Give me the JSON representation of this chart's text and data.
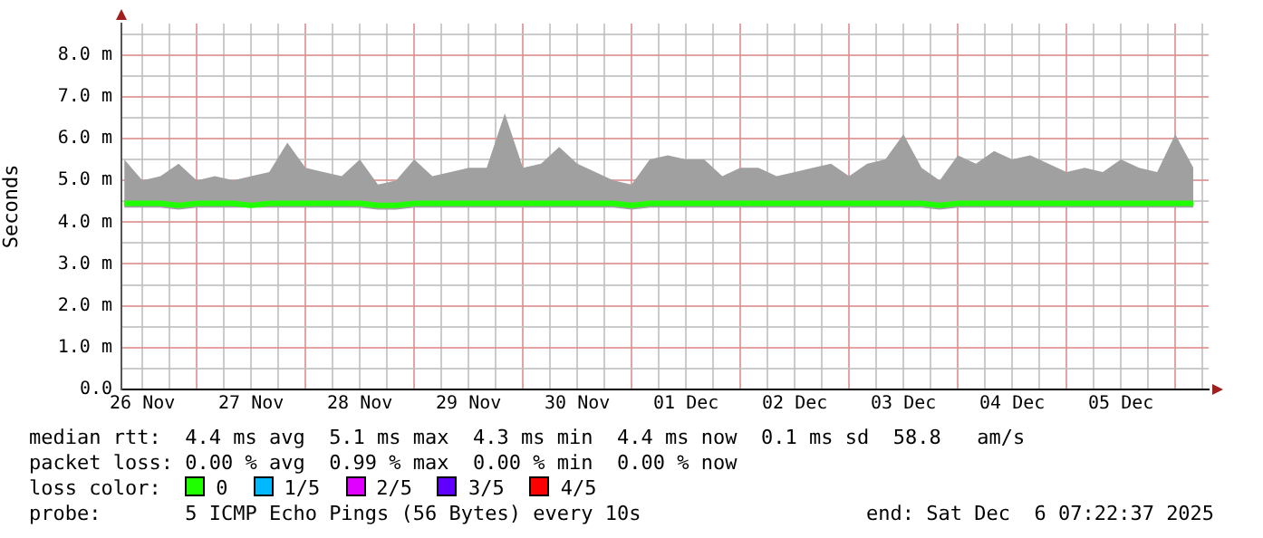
{
  "chart_data": {
    "type": "line",
    "ylabel": "Seconds",
    "legend_title": "loss color:",
    "legend": "bottom",
    "grid": true,
    "marker": "none",
    "line_style": "solid",
    "xlim": [
      "2025-11-26T07:22",
      "2025-12-06T07:22"
    ],
    "xticks": [
      {
        "value": "2025-11-26T12:00",
        "label": "26 Nov"
      },
      {
        "value": "2025-11-26T18:00",
        "label": null
      },
      {
        "value": "2025-11-27T00:00",
        "label": null
      },
      {
        "value": "2025-11-27T06:00",
        "label": null
      },
      {
        "value": "2025-11-27T12:00",
        "label": "27 Nov"
      },
      {
        "value": "2025-11-27T18:00",
        "label": null
      },
      {
        "value": "2025-11-28T00:00",
        "label": null
      },
      {
        "value": "2025-11-28T06:00",
        "label": null
      },
      {
        "value": "2025-11-28T12:00",
        "label": "28 Nov"
      },
      {
        "value": "2025-11-28T18:00",
        "label": null
      },
      {
        "value": "2025-11-29T00:00",
        "label": null
      },
      {
        "value": "2025-11-29T06:00",
        "label": null
      },
      {
        "value": "2025-11-29T12:00",
        "label": "29 Nov"
      },
      {
        "value": "2025-11-29T18:00",
        "label": null
      },
      {
        "value": "2025-11-30T00:00",
        "label": null
      },
      {
        "value": "2025-11-30T06:00",
        "label": null
      },
      {
        "value": "2025-11-30T12:00",
        "label": "30 Nov"
      },
      {
        "value": "2025-11-30T18:00",
        "label": null
      },
      {
        "value": "2025-12-01T00:00",
        "label": null
      },
      {
        "value": "2025-12-01T06:00",
        "label": null
      },
      {
        "value": "2025-12-01T12:00",
        "label": "01 Dec"
      },
      {
        "value": "2025-12-01T18:00",
        "label": null
      },
      {
        "value": "2025-12-02T00:00",
        "label": null
      },
      {
        "value": "2025-12-02T06:00",
        "label": null
      },
      {
        "value": "2025-12-02T12:00",
        "label": "02 Dec"
      },
      {
        "value": "2025-12-02T18:00",
        "label": null
      },
      {
        "value": "2025-12-03T00:00",
        "label": null
      },
      {
        "value": "2025-12-03T06:00",
        "label": null
      },
      {
        "value": "2025-12-03T12:00",
        "label": "03 Dec"
      },
      {
        "value": "2025-12-03T18:00",
        "label": null
      },
      {
        "value": "2025-12-04T00:00",
        "label": null
      },
      {
        "value": "2025-12-04T06:00",
        "label": null
      },
      {
        "value": "2025-12-04T12:00",
        "label": "04 Dec"
      },
      {
        "value": "2025-12-04T18:00",
        "label": null
      },
      {
        "value": "2025-12-05T00:00",
        "label": null
      },
      {
        "value": "2025-12-05T06:00",
        "label": null
      },
      {
        "value": "2025-12-05T12:00",
        "label": "05 Dec"
      },
      {
        "value": "2025-12-05T18:00",
        "label": null
      },
      {
        "value": "2025-12-06T00:00",
        "label": null
      },
      {
        "value": "2025-12-06T06:00",
        "label": null
      }
    ],
    "ylim": [
      0,
      8.75
    ],
    "yticks": [
      {
        "value": 0,
        "label": "0.0"
      },
      {
        "value": 0.5,
        "label": null
      },
      {
        "value": 1,
        "label": "1.0 m"
      },
      {
        "value": 1.5,
        "label": null
      },
      {
        "value": 2,
        "label": "2.0 m"
      },
      {
        "value": 2.5,
        "label": null
      },
      {
        "value": 3,
        "label": "3.0 m"
      },
      {
        "value": 3.5,
        "label": null
      },
      {
        "value": 4,
        "label": "4.0 m"
      },
      {
        "value": 4.5,
        "label": null
      },
      {
        "value": 5,
        "label": "5.0 m"
      },
      {
        "value": 5.5,
        "label": null
      },
      {
        "value": 6,
        "label": "6.0 m"
      },
      {
        "value": 6.5,
        "label": null
      },
      {
        "value": 7,
        "label": "7.0 m"
      },
      {
        "value": 7.5,
        "label": null
      },
      {
        "value": 8,
        "label": "8.0 m"
      },
      {
        "value": 8.5,
        "label": null
      }
    ],
    "x": [
      "2025-11-26T08:00",
      "2025-11-26T12:00",
      "2025-11-26T16:00",
      "2025-11-26T20:00",
      "2025-11-27T00:00",
      "2025-11-27T04:00",
      "2025-11-27T08:00",
      "2025-11-27T12:00",
      "2025-11-27T16:00",
      "2025-11-27T20:00",
      "2025-11-28T00:00",
      "2025-11-28T04:00",
      "2025-11-28T08:00",
      "2025-11-28T12:00",
      "2025-11-28T16:00",
      "2025-11-28T20:00",
      "2025-11-29T00:00",
      "2025-11-29T04:00",
      "2025-11-29T08:00",
      "2025-11-29T12:00",
      "2025-11-29T16:00",
      "2025-11-29T20:00",
      "2025-11-30T00:00",
      "2025-11-30T04:00",
      "2025-11-30T08:00",
      "2025-11-30T12:00",
      "2025-11-30T16:00",
      "2025-11-30T20:00",
      "2025-12-01T00:00",
      "2025-12-01T04:00",
      "2025-12-01T08:00",
      "2025-12-01T12:00",
      "2025-12-01T16:00",
      "2025-12-01T20:00",
      "2025-12-02T00:00",
      "2025-12-02T04:00",
      "2025-12-02T08:00",
      "2025-12-02T12:00",
      "2025-12-02T16:00",
      "2025-12-02T20:00",
      "2025-12-03T00:00",
      "2025-12-03T04:00",
      "2025-12-03T08:00",
      "2025-12-03T12:00",
      "2025-12-03T16:00",
      "2025-12-03T20:00",
      "2025-12-04T00:00",
      "2025-12-04T04:00",
      "2025-12-04T08:00",
      "2025-12-04T12:00",
      "2025-12-04T16:00",
      "2025-12-04T20:00",
      "2025-12-05T00:00",
      "2025-12-05T04:00",
      "2025-12-05T08:00",
      "2025-12-05T12:00",
      "2025-12-05T16:00",
      "2025-12-05T20:00",
      "2025-12-06T00:00",
      "2025-12-06T04:00"
    ],
    "series": [
      {
        "name": "0",
        "color": "#20ff00",
        "values": [
          4.45,
          4.45,
          4.45,
          4.4,
          4.45,
          4.45,
          4.45,
          4.4,
          4.45,
          4.45,
          4.45,
          4.45,
          4.45,
          4.45,
          4.4,
          4.4,
          4.45,
          4.45,
          4.45,
          4.45,
          4.45,
          4.45,
          4.45,
          4.45,
          4.45,
          4.45,
          4.45,
          4.45,
          4.4,
          4.45,
          4.45,
          4.45,
          4.45,
          4.45,
          4.45,
          4.45,
          4.45,
          4.45,
          4.45,
          4.45,
          4.45,
          4.45,
          4.45,
          4.45,
          4.45,
          4.4,
          4.45,
          4.45,
          4.45,
          4.45,
          4.45,
          4.45,
          4.45,
          4.45,
          4.45,
          4.45,
          4.45,
          4.45,
          4.45,
          4.45
        ],
        "lower": [
          4.35,
          4.35,
          4.35,
          4.3,
          4.35,
          4.35,
          4.35,
          4.35,
          4.35,
          4.35,
          4.35,
          4.35,
          4.35,
          4.35,
          4.3,
          4.3,
          4.35,
          4.35,
          4.35,
          4.35,
          4.35,
          4.35,
          4.35,
          4.35,
          4.35,
          4.35,
          4.35,
          4.35,
          4.3,
          4.35,
          4.35,
          4.35,
          4.35,
          4.35,
          4.35,
          4.35,
          4.35,
          4.35,
          4.35,
          4.35,
          4.35,
          4.35,
          4.35,
          4.35,
          4.35,
          4.3,
          4.35,
          4.35,
          4.35,
          4.35,
          4.35,
          4.35,
          4.35,
          4.35,
          4.35,
          4.35,
          4.35,
          4.35,
          4.35,
          4.35
        ],
        "upper": [
          5.5,
          5.0,
          5.1,
          5.4,
          5.0,
          5.1,
          5.0,
          5.1,
          5.2,
          5.9,
          5.3,
          5.2,
          5.1,
          5.5,
          4.9,
          5.0,
          5.5,
          5.1,
          5.2,
          5.3,
          5.3,
          6.6,
          5.3,
          5.4,
          5.8,
          5.4,
          5.2,
          5.0,
          4.9,
          5.5,
          5.6,
          5.5,
          5.5,
          5.1,
          5.3,
          5.3,
          5.1,
          5.2,
          5.3,
          5.4,
          5.1,
          5.4,
          5.5,
          6.1,
          5.3,
          5.0,
          5.6,
          5.4,
          5.7,
          5.5,
          5.6,
          5.4,
          5.2,
          5.3,
          5.2,
          5.5,
          5.3,
          5.2,
          6.1,
          5.3
        ]
      },
      {
        "name": "1/5",
        "color": "#00b8ff",
        "values": [
          null,
          null,
          null,
          null,
          null,
          null,
          null,
          null,
          null,
          null,
          null,
          null,
          null,
          null,
          null,
          null,
          null,
          null,
          null,
          null,
          null,
          null,
          null,
          null,
          null,
          null,
          null,
          null,
          null,
          null,
          null,
          null,
          null,
          null,
          null,
          null,
          null,
          null,
          null,
          null,
          null,
          null,
          null,
          null,
          null,
          null,
          null,
          null,
          null,
          null,
          null,
          null,
          null,
          null,
          null,
          null,
          null,
          null,
          null,
          null
        ]
      },
      {
        "name": "2/5",
        "color": "#e000ff",
        "values": [
          null,
          null,
          null,
          null,
          null,
          null,
          null,
          null,
          null,
          null,
          null,
          null,
          null,
          null,
          null,
          null,
          null,
          null,
          null,
          null,
          null,
          null,
          null,
          null,
          null,
          null,
          null,
          null,
          null,
          null,
          null,
          null,
          null,
          null,
          null,
          null,
          null,
          null,
          null,
          null,
          null,
          null,
          null,
          null,
          null,
          null,
          null,
          null,
          null,
          null,
          null,
          null,
          null,
          null,
          null,
          null,
          null,
          null,
          null,
          null
        ]
      },
      {
        "name": "3/5",
        "color": "#6000ff",
        "values": [
          null,
          null,
          null,
          null,
          null,
          null,
          null,
          null,
          null,
          null,
          null,
          null,
          null,
          null,
          null,
          null,
          null,
          null,
          null,
          null,
          null,
          null,
          null,
          null,
          null,
          null,
          null,
          null,
          null,
          null,
          null,
          null,
          null,
          null,
          null,
          null,
          null,
          null,
          null,
          null,
          null,
          null,
          null,
          null,
          null,
          null,
          null,
          null,
          null,
          null,
          null,
          null,
          null,
          null,
          null,
          null,
          null,
          null,
          null,
          null
        ]
      },
      {
        "name": "4/5",
        "color": "#ff0000",
        "values": [
          null,
          null,
          null,
          null,
          null,
          null,
          null,
          null,
          null,
          null,
          null,
          null,
          null,
          null,
          null,
          null,
          null,
          null,
          null,
          null,
          null,
          null,
          null,
          null,
          null,
          null,
          null,
          null,
          null,
          null,
          null,
          null,
          null,
          null,
          null,
          null,
          null,
          null,
          null,
          null,
          null,
          null,
          null,
          null,
          null,
          null,
          null,
          null,
          null,
          null,
          null,
          null,
          null,
          null,
          null,
          null,
          null,
          null,
          null,
          null
        ]
      }
    ],
    "annotations": [
      "median rtt:  4.4 ms avg  5.1 ms max  4.3 ms min  4.4 ms now  0.1 ms sd  58.8   am/s",
      "packet loss: 0.00 % avg  0.99 % max  0.00 % min  0.00 % now",
      "probe:       5 ICMP Echo Pings (56 Bytes) every 10s",
      "end: Sat Dec  6 07:22:37 2025"
    ]
  }
}
